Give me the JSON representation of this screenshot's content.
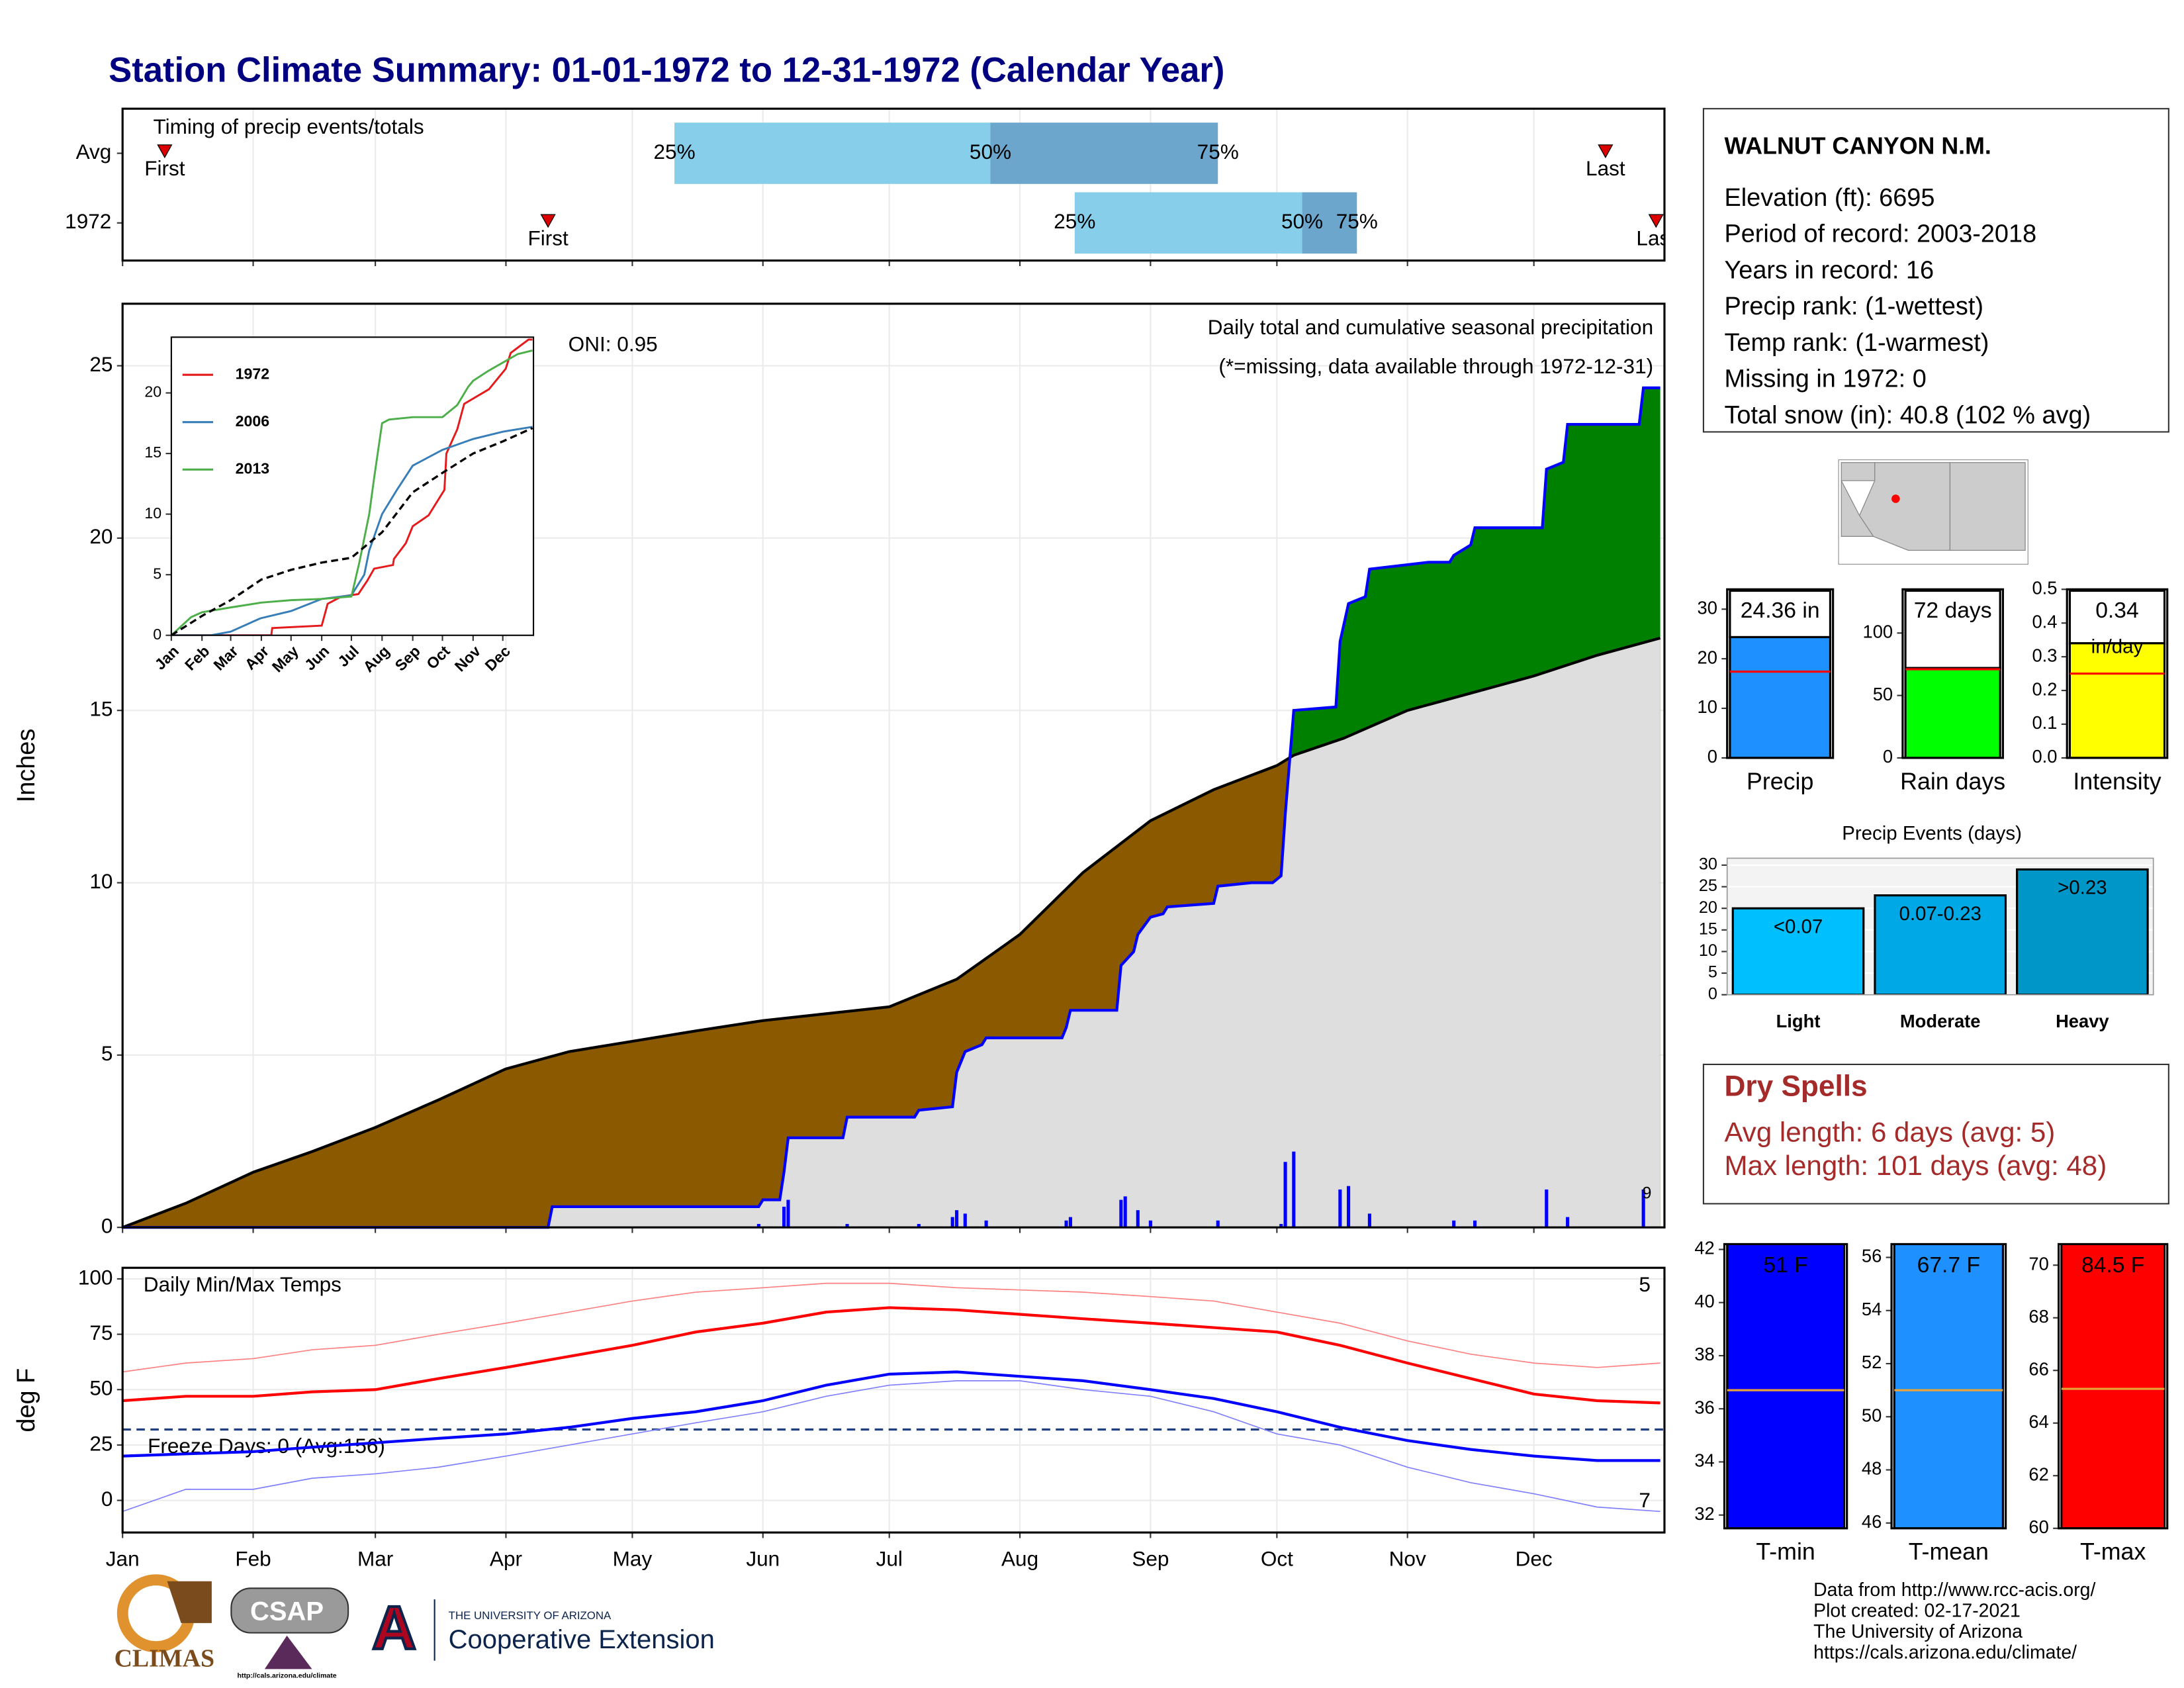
{
  "title": "Station Climate Summary: 01-01-1972 to 12-31-1972 (Calendar Year)",
  "chart_data": [
    {
      "type": "timeline",
      "title": "Timing of precip events/totals",
      "categories": [
        "Avg",
        "1972"
      ],
      "xlim": [
        0,
        366
      ],
      "xticks": [
        0,
        31,
        60,
        91,
        121,
        152,
        182,
        213,
        244,
        274,
        305,
        335
      ],
      "rows": [
        {
          "first": 10,
          "q25": 131,
          "q50": 206,
          "q75": 260,
          "last": 352
        },
        {
          "first": 101,
          "q25": 226,
          "q50": 280,
          "q75": 293,
          "last": 364
        }
      ],
      "labels": {
        "first": "First",
        "last": "Last",
        "q25": "25%",
        "q50": "50%",
        "q75": "75%"
      },
      "colors": [
        "#87ceeb",
        "#6ca6cd"
      ],
      "marker_color": "#dd0000",
      "grid": true
    },
    {
      "type": "area",
      "title": "Daily total and cumulative seasonal precipitation",
      "subtitle": "(*=missing, data available through 1972-12-31)",
      "annotation": "ONI: 0.95",
      "marker_label": "9",
      "ylabel": "Inches",
      "xlim": [
        0,
        366
      ],
      "ylim": [
        0,
        26.8
      ],
      "yticks": [
        0,
        5,
        10,
        15,
        20,
        25
      ],
      "xticks": [
        0,
        31,
        60,
        91,
        121,
        152,
        182,
        213,
        244,
        274,
        305,
        335
      ],
      "grid": true,
      "average": {
        "color": "#000000",
        "fill_below": "#8b5a00",
        "x": [
          0,
          15,
          31,
          45,
          60,
          75,
          91,
          106,
          121,
          136,
          152,
          167,
          182,
          198,
          213,
          228,
          244,
          259,
          274,
          278,
          290,
          305,
          320,
          335,
          350,
          365
        ],
        "values": [
          0,
          0.7,
          1.6,
          2.2,
          2.9,
          3.7,
          4.6,
          5.1,
          5.4,
          5.7,
          6.0,
          6.2,
          6.4,
          7.2,
          8.5,
          10.3,
          11.8,
          12.7,
          13.4,
          13.7,
          14.2,
          15.0,
          15.5,
          16.0,
          16.6,
          17.1
        ]
      },
      "series": {
        "color": "#0000ff",
        "fill_above": "#008000",
        "fill_common": "#dedede",
        "x": [
          0,
          101,
          102,
          151,
          152,
          156,
          157,
          158,
          171,
          172,
          188,
          189,
          197,
          198,
          200,
          204,
          205,
          223,
          224,
          225,
          236,
          237,
          240,
          241,
          244,
          247,
          248,
          259,
          260,
          268,
          273,
          275,
          276,
          278,
          288,
          289,
          291,
          295,
          296,
          310,
          315,
          316,
          320,
          321,
          337,
          338,
          342,
          343,
          360,
          361,
          365
        ],
        "values": [
          0,
          0,
          0.6,
          0.6,
          0.8,
          0.8,
          1.6,
          2.6,
          2.6,
          3.2,
          3.2,
          3.4,
          3.5,
          4.5,
          5.1,
          5.3,
          5.5,
          5.5,
          5.8,
          6.3,
          6.3,
          7.6,
          8.0,
          8.5,
          9.0,
          9.1,
          9.3,
          9.4,
          9.9,
          10.0,
          10.0,
          10.2,
          12.0,
          15.0,
          15.1,
          17.0,
          18.1,
          18.3,
          19.1,
          19.3,
          19.3,
          19.5,
          19.8,
          20.3,
          20.3,
          22.0,
          22.2,
          23.3,
          23.3,
          24.36,
          24.36
        ]
      },
      "daily": {
        "color": "#0000ff",
        "x": [
          151,
          157,
          158,
          172,
          189,
          197,
          198,
          200,
          205,
          224,
          225,
          237,
          238,
          241,
          244,
          260,
          275,
          276,
          278,
          289,
          291,
          296,
          316,
          321,
          338,
          343,
          361
        ],
        "values": [
          0.1,
          0.6,
          0.8,
          0.1,
          0.1,
          0.3,
          0.5,
          0.4,
          0.2,
          0.2,
          0.3,
          0.8,
          0.9,
          0.5,
          0.2,
          0.2,
          0.1,
          1.9,
          2.2,
          1.1,
          1.2,
          0.4,
          0.2,
          0.2,
          1.1,
          0.3,
          1.1
        ]
      }
    },
    {
      "type": "line",
      "categories": [
        "Jan",
        "Feb",
        "Mar",
        "Apr",
        "May",
        "Jun",
        "Jul",
        "Aug",
        "Sep",
        "Oct",
        "Nov",
        "Dec"
      ],
      "xticks": [
        0,
        31,
        60,
        91,
        121,
        152,
        182,
        213,
        244,
        274,
        305,
        335
      ],
      "xlim": [
        0,
        366
      ],
      "ylim": [
        0,
        24.6
      ],
      "yticks": [
        0,
        5,
        10,
        15,
        20
      ],
      "legend": "upper left",
      "series": [
        {
          "name": "1972",
          "color": "#e41a1c",
          "linewidth": 1.4,
          "x": [
            0,
            101,
            102,
            152,
            158,
            172,
            189,
            198,
            205,
            224,
            225,
            237,
            244,
            260,
            276,
            278,
            289,
            296,
            321,
            338,
            343,
            361,
            365
          ],
          "values": [
            0,
            0,
            0.6,
            0.8,
            2.6,
            3.2,
            3.4,
            4.5,
            5.5,
            5.8,
            6.3,
            7.6,
            9.0,
            9.9,
            12.0,
            15.0,
            17.0,
            19.1,
            20.3,
            22.0,
            23.3,
            24.4,
            24.4
          ]
        },
        {
          "name": "2006",
          "color": "#377eb8",
          "linewidth": 1.4,
          "x": [
            0,
            40,
            60,
            90,
            121,
            152,
            182,
            195,
            200,
            213,
            228,
            244,
            274,
            305,
            335,
            365
          ],
          "values": [
            0,
            0,
            0.3,
            1.4,
            2.0,
            3.0,
            3.3,
            5.0,
            7.0,
            10.0,
            12.0,
            14.0,
            15.3,
            16.2,
            16.8,
            17.2
          ]
        },
        {
          "name": "2013",
          "color": "#4daf4a",
          "linewidth": 1.4,
          "x": [
            0,
            20,
            31,
            60,
            91,
            121,
            152,
            182,
            190,
            200,
            205,
            213,
            220,
            244,
            274,
            289,
            300,
            305,
            320,
            335,
            350,
            365
          ],
          "values": [
            0,
            1.5,
            1.9,
            2.3,
            2.7,
            2.9,
            3.0,
            3.2,
            6.0,
            10.0,
            13.0,
            17.5,
            17.8,
            18.0,
            18.0,
            19.0,
            20.5,
            21.0,
            21.8,
            22.5,
            23.2,
            23.5
          ]
        },
        {
          "color": "#000000",
          "linewidth": 1.6,
          "dash": true,
          "x": [
            0,
            31,
            60,
            91,
            121,
            152,
            182,
            213,
            244,
            274,
            305,
            335,
            365
          ],
          "values": [
            0,
            1.6,
            2.9,
            4.6,
            5.4,
            6.0,
            6.4,
            8.5,
            11.8,
            13.4,
            15.0,
            16.0,
            17.1
          ]
        }
      ]
    },
    {
      "type": "line",
      "title": "Daily Min/Max Temps",
      "ylabel": "deg F",
      "categories": [
        "Jan",
        "Feb",
        "Mar",
        "Apr",
        "May",
        "Jun",
        "Jul",
        "Aug",
        "Sep",
        "Oct",
        "Nov",
        "Dec"
      ],
      "xticks": [
        0,
        31,
        60,
        91,
        121,
        152,
        182,
        213,
        244,
        274,
        305,
        335
      ],
      "xlim": [
        0,
        366
      ],
      "ylim": [
        -14.5,
        105
      ],
      "yticks": [
        0,
        25,
        50,
        75,
        100
      ],
      "grid": true,
      "hlines": [
        {
          "value": 32,
          "label": "Freeze Days: 0 (Avg:156)",
          "color": "#1f3f7f"
        }
      ],
      "corner_labels": [
        {
          "text": "5",
          "color": "#ff0000",
          "corner": "upper right"
        },
        {
          "text": "7",
          "color": "#0000ff",
          "corner": "lower right"
        }
      ],
      "series": [
        {
          "color": "#ff8080",
          "linewidth": 0.8,
          "x": [
            0,
            15,
            31,
            45,
            60,
            75,
            91,
            106,
            121,
            136,
            152,
            167,
            182,
            198,
            213,
            228,
            244,
            259,
            274,
            289,
            305,
            320,
            335,
            350,
            365
          ],
          "values": [
            58,
            62,
            64,
            68,
            70,
            75,
            80,
            85,
            90,
            94,
            96,
            98,
            98,
            96,
            95,
            94,
            92,
            90,
            85,
            80,
            72,
            66,
            62,
            60,
            62
          ]
        },
        {
          "color": "#8080ff",
          "linewidth": 0.8,
          "x": [
            0,
            15,
            31,
            45,
            60,
            75,
            91,
            106,
            121,
            136,
            152,
            167,
            182,
            198,
            213,
            228,
            244,
            259,
            274,
            289,
            305,
            320,
            335,
            350,
            365
          ],
          "values": [
            -5,
            5,
            5,
            10,
            12,
            15,
            20,
            25,
            30,
            35,
            40,
            47,
            52,
            54,
            54,
            50,
            47,
            40,
            30,
            25,
            15,
            8,
            3,
            -3,
            -5
          ]
        },
        {
          "color": "#ff0000",
          "linewidth": 2,
          "x": [
            0,
            15,
            31,
            45,
            60,
            75,
            91,
            106,
            121,
            136,
            152,
            167,
            182,
            198,
            213,
            228,
            244,
            259,
            274,
            289,
            305,
            320,
            335,
            350,
            365
          ],
          "values": [
            45,
            47,
            47,
            49,
            50,
            55,
            60,
            65,
            70,
            76,
            80,
            85,
            87,
            86,
            84,
            82,
            80,
            78,
            76,
            70,
            62,
            55,
            48,
            45,
            44
          ]
        },
        {
          "color": "#0000ff",
          "linewidth": 2,
          "x": [
            0,
            15,
            31,
            45,
            60,
            75,
            91,
            106,
            121,
            136,
            152,
            167,
            182,
            198,
            213,
            228,
            244,
            259,
            274,
            289,
            305,
            320,
            335,
            350,
            365
          ],
          "values": [
            20,
            21,
            22,
            24,
            26,
            28,
            30,
            33,
            37,
            40,
            45,
            52,
            57,
            58,
            56,
            54,
            50,
            46,
            40,
            33,
            27,
            23,
            20,
            18,
            18
          ]
        }
      ]
    },
    {
      "type": "bar",
      "categories": [
        "Precip"
      ],
      "values": [
        24.36
      ],
      "value_labels": [
        "24.36 in"
      ],
      "colors": [
        "#1e90ff"
      ],
      "average": 17.4,
      "average_color": "#ff0000",
      "ylim": [
        0,
        34
      ],
      "yticks": [
        0,
        10,
        20,
        30
      ]
    },
    {
      "type": "bar",
      "categories": [
        "Rain days"
      ],
      "values": [
        72
      ],
      "value_labels": [
        "72 days"
      ],
      "colors": [
        "#00ff00"
      ],
      "average": 71,
      "average_color": "#ff0000",
      "ylim": [
        0,
        135
      ],
      "yticks": [
        0,
        50,
        100
      ]
    },
    {
      "type": "bar",
      "categories": [
        "Intensity"
      ],
      "values": [
        0.34
      ],
      "unit": "in/day",
      "colors": [
        "#ffff00"
      ],
      "average": 0.25,
      "average_color": "#ff0000",
      "ylim": [
        0,
        0.5
      ],
      "yticks": [
        {
          "value": 0,
          "label": "0.0"
        },
        0.1,
        0.2,
        0.3,
        0.4,
        0.5
      ]
    },
    {
      "type": "bar",
      "title": "Precip Events (days)",
      "categories": [
        "Light",
        "Moderate",
        "Heavy"
      ],
      "values": [
        20,
        23,
        29
      ],
      "bin_labels": [
        "<0.07",
        "0.07-0.23",
        ">0.23"
      ],
      "colors": [
        "#00bfff",
        "#00a9e6",
        "#0096c8"
      ],
      "ylim": [
        0,
        31.6
      ],
      "yticks": [
        0,
        5,
        10,
        15,
        20,
        25,
        30
      ],
      "grid": true
    },
    {
      "type": "bar",
      "categories": [
        "T-min"
      ],
      "values": [
        51
      ],
      "value_labels": [
        "51 F"
      ],
      "colors": [
        "#0000ff"
      ],
      "average": 36.7,
      "average_color": "#e8a33a",
      "ylim": [
        31.5,
        42.2
      ],
      "yticks": [
        32,
        34,
        36,
        38,
        40,
        42
      ]
    },
    {
      "type": "bar",
      "categories": [
        "T-mean"
      ],
      "values": [
        67.7
      ],
      "value_labels": [
        "67.7 F"
      ],
      "colors": [
        "#1e90ff"
      ],
      "average": 51,
      "average_color": "#e8a33a",
      "ylim": [
        45.8,
        56.5
      ],
      "yticks": [
        46,
        48,
        50,
        52,
        54,
        56
      ]
    },
    {
      "type": "bar",
      "categories": [
        "T-max"
      ],
      "values": [
        84.5
      ],
      "value_labels": [
        "84.5 F"
      ],
      "colors": [
        "#ff0000"
      ],
      "average": 65.3,
      "average_color": "#e8a33a",
      "ylim": [
        60,
        70.8
      ],
      "yticks": [
        60,
        62,
        64,
        66,
        68,
        70
      ]
    }
  ],
  "station": {
    "name": "WALNUT CANYON N.M.",
    "lines": [
      "Elevation (ft): 6695",
      "Period of record: 2003-2018",
      "Years in record: 16",
      "Precip rank:  (1-wettest)",
      "Temp rank:  (1-warmest)",
      "Missing in 1972: 0",
      "Total snow (in): 40.8 (102 % avg)"
    ]
  },
  "dry_spells": {
    "title": "Dry Spells",
    "lines": [
      "Avg length: 6 days (avg: 5)",
      "Max length: 101 days (avg: 48)"
    ]
  },
  "credits": [
    "Data from http://www.rcc-acis.org/",
    "Plot created: 02-17-2021",
    "The University of Arizona",
    "https://cals.arizona.edu/climate/"
  ],
  "logos": {
    "climas": "CLIMAS",
    "csap": "CSAP",
    "csap_url": "http://cals.arizona.edu/climate",
    "ua_small": "THE UNIVERSITY OF ARIZONA",
    "ua_big": "Cooperative Extension"
  }
}
